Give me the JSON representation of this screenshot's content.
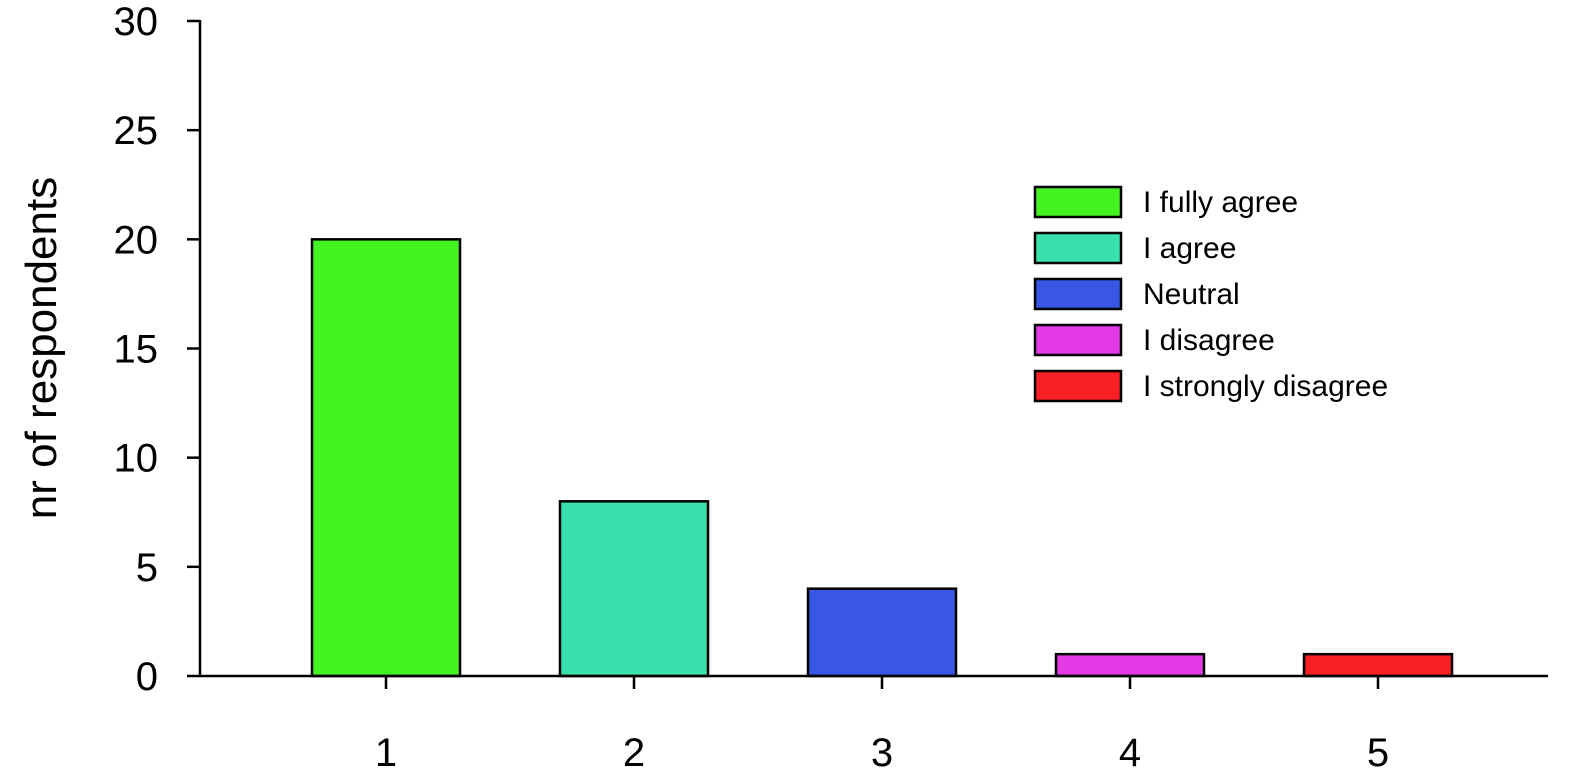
{
  "chart_data": {
    "type": "bar",
    "title": "",
    "xlabel": "",
    "ylabel": "nr of respondents",
    "categories": [
      "1",
      "2",
      "3",
      "4",
      "5"
    ],
    "values": [
      20,
      8,
      4,
      1,
      1
    ],
    "colors": [
      "#44f321",
      "#39e2ad",
      "#3857e5",
      "#e33ae6",
      "#f81f25"
    ],
    "ylim": [
      0,
      30
    ],
    "yticks": [
      "0",
      "5",
      "10",
      "15",
      "20",
      "25",
      "30"
    ],
    "grid": false,
    "legend": {
      "placement": "top-right",
      "entries": [
        "I fully agree",
        "I agree",
        "Neutral",
        "I disagree",
        "I strongly disagree"
      ]
    }
  }
}
